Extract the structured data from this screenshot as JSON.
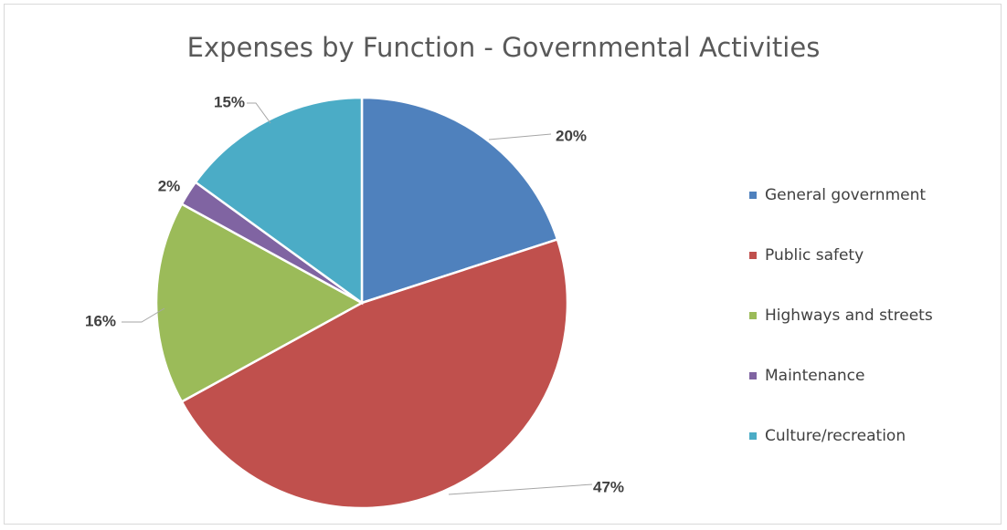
{
  "chart_data": {
    "type": "pie",
    "title": "Expenses by Function - Governmental Activities",
    "categories": [
      "General government",
      "Public safety",
      "Highways and streets",
      "Maintenance",
      "Culture/recreation"
    ],
    "values": [
      20,
      47,
      16,
      2,
      15
    ],
    "labels": [
      "20%",
      "47%",
      "16%",
      "2%",
      "15%"
    ],
    "colors": [
      "#4f81bd",
      "#c0504d",
      "#9bbb59",
      "#8064a2",
      "#4bacc6"
    ],
    "legend_position": "right"
  }
}
